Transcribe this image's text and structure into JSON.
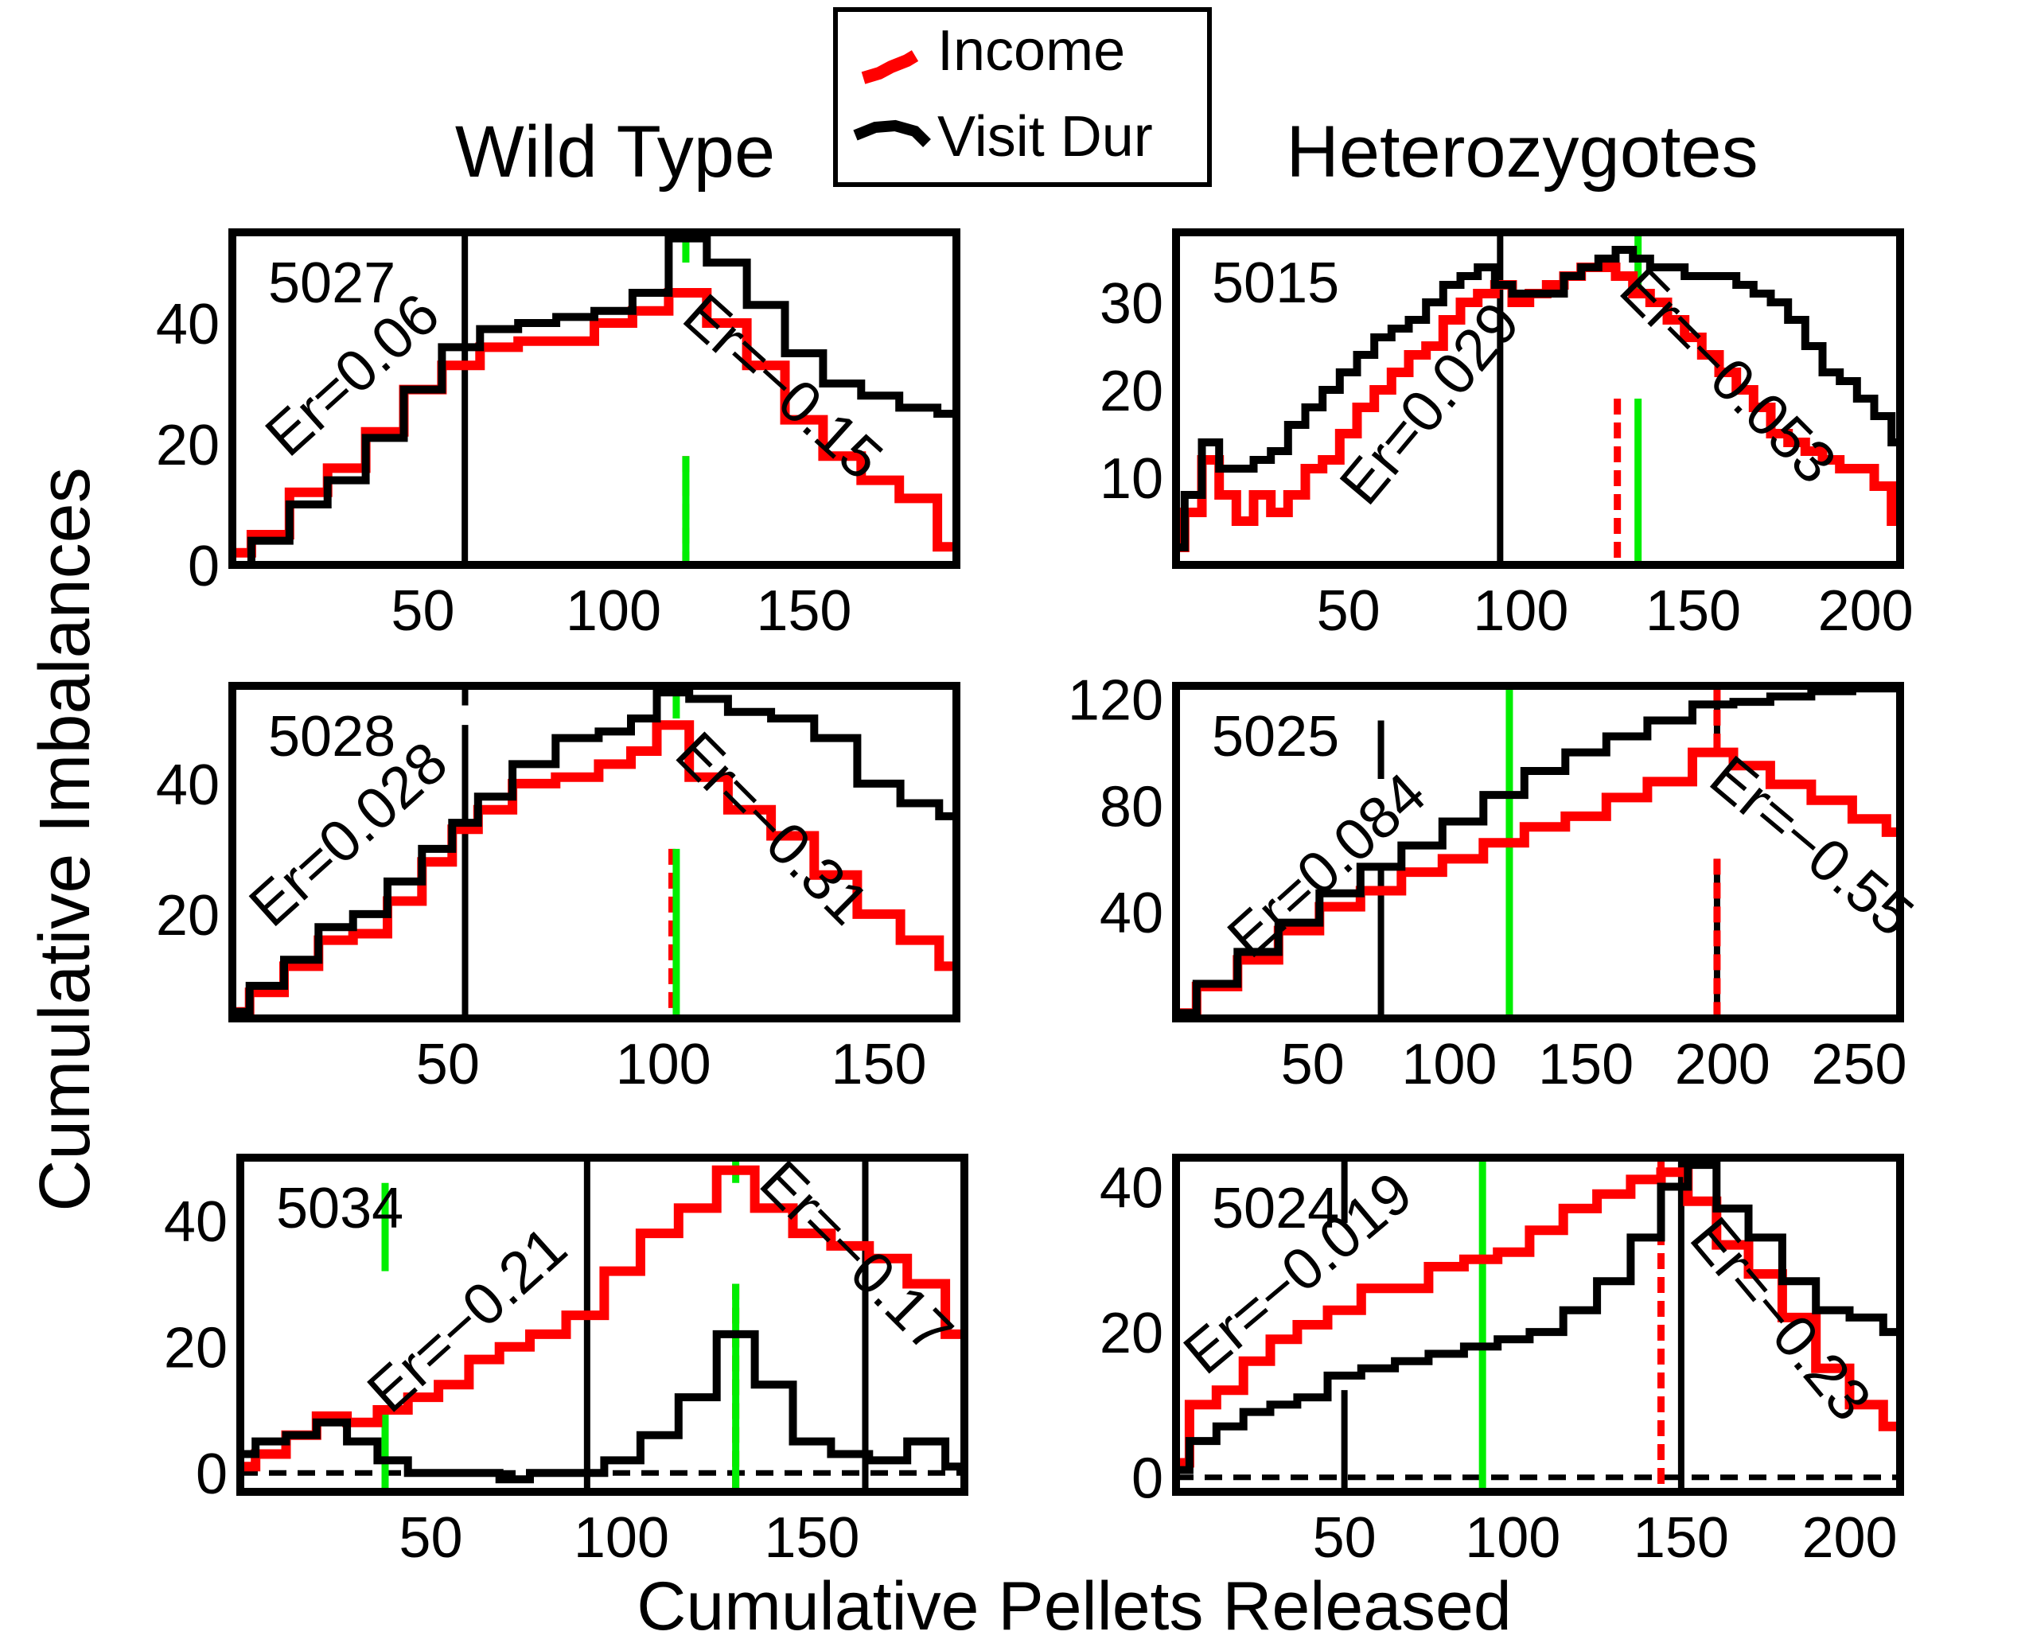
{
  "figure": {
    "y_axis_label": "Cumulative Imbalances",
    "x_axis_label": "Cumulative Pellets Released",
    "group_titles": [
      "Wild Type",
      "Heterozygotes"
    ]
  },
  "legend": {
    "items": [
      {
        "label": "Income",
        "color": "#ff0000"
      },
      {
        "label": "Visit Dur",
        "color": "#000000"
      }
    ]
  },
  "colors": {
    "income": "#ff0000",
    "visit": "#000000",
    "marker_green": "#00ee00",
    "marker_red": "#ff0000",
    "marker_black": "#000000"
  },
  "chart_data": [
    {
      "type": "line",
      "id": "5027",
      "group": "Wild Type",
      "xlim": [
        0,
        190
      ],
      "ylim": [
        0,
        55
      ],
      "xticks": [
        50,
        100,
        150
      ],
      "yticks": [
        0,
        20,
        40
      ],
      "zero_line": true,
      "vlines": [
        {
          "x": 61,
          "color": "black",
          "style": "solid",
          "from": 0,
          "to": 55
        },
        {
          "x": 119,
          "color": "red",
          "style": "dashed",
          "from": 0,
          "to": 18
        },
        {
          "x": 119,
          "color": "green",
          "style": "solid",
          "from": 0,
          "to": 18
        },
        {
          "x": 119,
          "color": "green",
          "style": "solid",
          "from": 50,
          "to": 55
        }
      ],
      "annotations": [
        {
          "text": "Er=0.06",
          "x": 35,
          "y": 29,
          "angle": -42
        },
        {
          "text": "Er=−0.15",
          "x": 141,
          "y": 27,
          "angle": 42
        }
      ],
      "series": [
        {
          "name": "Income",
          "x": [
            0,
            10,
            20,
            30,
            40,
            50,
            60,
            70,
            80,
            90,
            100,
            110,
            119,
            130,
            140,
            150,
            160,
            170,
            180,
            190
          ],
          "y": [
            2,
            5,
            12,
            16,
            22,
            29,
            33,
            36,
            37,
            37,
            40,
            42,
            45,
            40,
            33,
            24,
            18,
            14,
            11,
            3
          ]
        },
        {
          "name": "Visit Dur",
          "x": [
            0,
            10,
            20,
            30,
            40,
            50,
            60,
            70,
            80,
            90,
            100,
            110,
            119,
            130,
            140,
            150,
            160,
            170,
            180,
            190
          ],
          "y": [
            0,
            4,
            10,
            14,
            21,
            29,
            36,
            39,
            40,
            41,
            42,
            45,
            54,
            50,
            43,
            35,
            30,
            28,
            26,
            25
          ]
        }
      ]
    },
    {
      "type": "line",
      "id": "5015",
      "group": "Heterozygotes",
      "xlim": [
        0,
        210
      ],
      "ylim": [
        0,
        38
      ],
      "xticks": [
        50,
        100,
        150,
        200
      ],
      "yticks": [
        10,
        20,
        30
      ],
      "zero_line": false,
      "vlines": [
        {
          "x": 94,
          "color": "black",
          "style": "solid",
          "from": 0,
          "to": 38
        },
        {
          "x": 128,
          "color": "red",
          "style": "dashed",
          "from": 0,
          "to": 19
        },
        {
          "x": 134,
          "color": "green",
          "style": "solid",
          "from": 0,
          "to": 19
        },
        {
          "x": 134,
          "color": "green",
          "style": "solid",
          "from": 31,
          "to": 38
        }
      ],
      "annotations": [
        {
          "text": "Er=0.029",
          "x": 78,
          "y": 17,
          "angle": -50
        },
        {
          "text": "Er=−0.053",
          "x": 156,
          "y": 20,
          "angle": 45
        }
      ],
      "series": [
        {
          "name": "Income",
          "x": [
            0,
            5,
            10,
            15,
            20,
            25,
            30,
            35,
            40,
            45,
            50,
            55,
            60,
            65,
            70,
            75,
            80,
            85,
            90,
            95,
            100,
            105,
            110,
            115,
            120,
            125,
            130,
            135,
            140,
            145,
            150,
            155,
            160,
            165,
            170,
            175,
            180,
            185,
            190,
            195,
            200,
            205,
            210
          ],
          "y": [
            2,
            6,
            12,
            8,
            5,
            8,
            6,
            8,
            11,
            12,
            15,
            18,
            20,
            22,
            24,
            25,
            28,
            30,
            31,
            32,
            30,
            31,
            32,
            33,
            34,
            34,
            33,
            31,
            30,
            28,
            26,
            24,
            22,
            20,
            18,
            15,
            14,
            13,
            12,
            11,
            11,
            9,
            5
          ]
        },
        {
          "name": "Visit Dur",
          "x": [
            0,
            5,
            10,
            15,
            20,
            25,
            30,
            35,
            40,
            45,
            50,
            55,
            60,
            65,
            70,
            75,
            80,
            85,
            90,
            95,
            100,
            105,
            110,
            115,
            120,
            125,
            130,
            135,
            140,
            145,
            150,
            155,
            160,
            165,
            170,
            175,
            180,
            185,
            190,
            195,
            200,
            205,
            210
          ],
          "y": [
            2,
            8,
            14,
            11,
            11,
            12,
            13,
            16,
            18,
            20,
            22,
            24,
            26,
            27,
            28,
            30,
            32,
            33,
            34,
            32,
            31,
            31,
            31,
            33,
            34,
            35,
            36,
            35,
            34,
            34,
            33,
            33,
            33,
            32,
            31,
            30,
            28,
            25,
            22,
            21,
            19,
            17,
            14
          ]
        }
      ]
    },
    {
      "type": "line",
      "id": "5028",
      "group": "Wild Type",
      "xlim": [
        0,
        168
      ],
      "ylim": [
        4,
        55
      ],
      "xticks": [
        50,
        100,
        150
      ],
      "yticks": [
        20,
        40
      ],
      "zero_line": false,
      "vlines": [
        {
          "x": 54,
          "color": "black",
          "style": "solid",
          "from": 4,
          "to": 49
        },
        {
          "x": 54,
          "color": "black",
          "style": "solid",
          "from": 52,
          "to": 55
        },
        {
          "x": 102,
          "color": "red",
          "style": "dashed",
          "from": 4,
          "to": 30
        },
        {
          "x": 103,
          "color": "green",
          "style": "solid",
          "from": 4,
          "to": 30
        },
        {
          "x": 103,
          "color": "green",
          "style": "solid",
          "from": 50,
          "to": 55
        }
      ],
      "annotations": [
        {
          "text": "Er=0.028",
          "x": 30,
          "y": 30,
          "angle": -42
        },
        {
          "text": "Er=−0.31",
          "x": 122,
          "y": 31,
          "angle": 45
        }
      ],
      "series": [
        {
          "name": "Income",
          "x": [
            0,
            8,
            16,
            24,
            32,
            40,
            48,
            54,
            60,
            70,
            80,
            90,
            95,
            102,
            110,
            120,
            130,
            140,
            150,
            160,
            168
          ],
          "y": [
            5,
            8,
            12,
            16,
            17,
            22,
            28,
            33,
            36,
            40,
            41,
            43,
            45,
            49,
            41,
            36,
            32,
            26,
            20,
            16,
            12
          ]
        },
        {
          "name": "Visit Dur",
          "x": [
            0,
            8,
            16,
            24,
            32,
            40,
            48,
            54,
            60,
            70,
            80,
            90,
            95,
            102,
            110,
            120,
            130,
            140,
            150,
            160,
            168
          ],
          "y": [
            5,
            9,
            13,
            18,
            20,
            25,
            30,
            34,
            38,
            43,
            47,
            48,
            50,
            54,
            53,
            51,
            50,
            47,
            40,
            37,
            35
          ]
        }
      ]
    },
    {
      "type": "line",
      "id": "5025",
      "group": "Heterozygotes",
      "xlim": [
        0,
        265
      ],
      "ylim": [
        0,
        125
      ],
      "xticks": [
        50,
        100,
        150,
        200,
        250
      ],
      "yticks": [
        40,
        80,
        120
      ],
      "zero_line": false,
      "vlines": [
        {
          "x": 75,
          "color": "black",
          "style": "solid",
          "from": 0,
          "to": 56
        },
        {
          "x": 75,
          "color": "black",
          "style": "solid",
          "from": 90,
          "to": 112
        },
        {
          "x": 122,
          "color": "green",
          "style": "solid",
          "from": 0,
          "to": 125
        },
        {
          "x": 198,
          "color": "black",
          "style": "solid",
          "from": 0,
          "to": 60
        },
        {
          "x": 198,
          "color": "red",
          "style": "dashed",
          "from": 0,
          "to": 60
        },
        {
          "x": 198,
          "color": "black",
          "style": "solid",
          "from": 100,
          "to": 125
        },
        {
          "x": 198,
          "color": "red",
          "style": "dashed",
          "from": 100,
          "to": 125
        }
      ],
      "annotations": [
        {
          "text": "Er=0.084",
          "x": 60,
          "y": 52,
          "angle": -42
        },
        {
          "text": "Er=−0.55",
          "x": 228,
          "y": 59,
          "angle": 40
        }
      ],
      "series": [
        {
          "name": "Income",
          "x": [
            0,
            15,
            30,
            45,
            60,
            75,
            90,
            105,
            120,
            135,
            150,
            165,
            180,
            198,
            210,
            225,
            240,
            255,
            265
          ],
          "y": [
            2,
            12,
            22,
            33,
            42,
            48,
            55,
            60,
            66,
            72,
            76,
            83,
            89,
            100,
            95,
            88,
            82,
            75,
            70
          ]
        },
        {
          "name": "Visit Dur",
          "x": [
            0,
            15,
            30,
            45,
            60,
            75,
            90,
            105,
            120,
            135,
            150,
            165,
            180,
            198,
            210,
            225,
            240,
            255,
            265
          ],
          "y": [
            2,
            13,
            25,
            36,
            47,
            57,
            65,
            74,
            84,
            93,
            100,
            106,
            112,
            118,
            119,
            121,
            123,
            124,
            124
          ]
        }
      ]
    },
    {
      "type": "line",
      "id": "5034",
      "group": "Wild Type",
      "xlim": [
        0,
        190
      ],
      "ylim": [
        -3,
        50
      ],
      "xticks": [
        50,
        100,
        150
      ],
      "yticks": [
        0,
        20,
        40
      ],
      "zero_line": true,
      "vlines": [
        {
          "x": 38,
          "color": "green",
          "style": "solid",
          "from": -3,
          "to": 10
        },
        {
          "x": 38,
          "color": "green",
          "style": "solid",
          "from": 32,
          "to": 46
        },
        {
          "x": 91,
          "color": "black",
          "style": "solid",
          "from": -3,
          "to": 50
        },
        {
          "x": 130,
          "color": "red",
          "style": "dashed",
          "from": -3,
          "to": 30
        },
        {
          "x": 130,
          "color": "green",
          "style": "solid",
          "from": -3,
          "to": 30
        },
        {
          "x": 130,
          "color": "green",
          "style": "solid",
          "from": 46,
          "to": 50
        },
        {
          "x": 164,
          "color": "black",
          "style": "solid",
          "from": -3,
          "to": 50
        }
      ],
      "annotations": [
        {
          "text": "Er=−0.21",
          "x": 63,
          "y": 22,
          "angle": -42
        },
        {
          "text": "Er=−0.17",
          "x": 158,
          "y": 32,
          "angle": 45
        }
      ],
      "series": [
        {
          "name": "Income",
          "x": [
            0,
            8,
            16,
            24,
            32,
            40,
            48,
            56,
            64,
            72,
            80,
            91,
            100,
            110,
            120,
            130,
            140,
            150,
            160,
            170,
            180,
            190
          ],
          "y": [
            1,
            3,
            6,
            9,
            8,
            10,
            12,
            14,
            18,
            20,
            22,
            25,
            32,
            38,
            42,
            48,
            42,
            38,
            36,
            34,
            30,
            22
          ]
        },
        {
          "name": "Visit Dur",
          "x": [
            0,
            8,
            16,
            24,
            32,
            40,
            48,
            56,
            64,
            72,
            80,
            91,
            100,
            110,
            120,
            130,
            140,
            150,
            160,
            170,
            180,
            190
          ],
          "y": [
            3,
            5,
            6,
            8,
            5,
            2,
            0,
            0,
            0,
            -1,
            0,
            0,
            2,
            6,
            12,
            22,
            14,
            5,
            3,
            2,
            5,
            1
          ]
        }
      ]
    },
    {
      "type": "line",
      "id": "5024",
      "group": "Heterozygotes",
      "xlim": [
        0,
        215
      ],
      "ylim": [
        -2,
        44
      ],
      "xticks": [
        50,
        100,
        150,
        200
      ],
      "yticks": [
        0,
        20,
        40
      ],
      "zero_line": true,
      "vlines": [
        {
          "x": 50,
          "color": "black",
          "style": "solid",
          "from": -2,
          "to": 12
        },
        {
          "x": 50,
          "color": "black",
          "style": "solid",
          "from": 35,
          "to": 44
        },
        {
          "x": 91,
          "color": "green",
          "style": "solid",
          "from": -2,
          "to": 44
        },
        {
          "x": 144,
          "color": "red",
          "style": "dashed",
          "from": -2,
          "to": 44
        },
        {
          "x": 150,
          "color": "black",
          "style": "solid",
          "from": -2,
          "to": 44
        }
      ],
      "annotations": [
        {
          "text": "Er=−0.019",
          "x": 40,
          "y": 26,
          "angle": -40
        },
        {
          "text": "Er=−0.23",
          "x": 175,
          "y": 20,
          "angle": 50
        }
      ],
      "series": [
        {
          "name": "Income",
          "x": [
            0,
            8,
            16,
            24,
            32,
            40,
            50,
            60,
            70,
            80,
            91,
            100,
            110,
            120,
            130,
            140,
            148,
            156,
            165,
            175,
            185,
            195,
            205,
            215
          ],
          "y": [
            2,
            10,
            12,
            16,
            19,
            21,
            23,
            26,
            26,
            29,
            30,
            31,
            34,
            37,
            39,
            41,
            42,
            38,
            32,
            28,
            22,
            15,
            10,
            7
          ]
        },
        {
          "name": "Visit Dur",
          "x": [
            0,
            8,
            16,
            24,
            32,
            40,
            50,
            60,
            70,
            80,
            91,
            100,
            110,
            120,
            130,
            140,
            148,
            156,
            165,
            175,
            185,
            195,
            205,
            215
          ],
          "y": [
            1,
            5,
            7,
            9,
            10,
            11,
            14,
            15,
            16,
            17,
            18,
            19,
            20,
            23,
            27,
            33,
            40,
            43,
            37,
            33,
            27,
            23,
            22,
            20
          ]
        }
      ]
    }
  ]
}
